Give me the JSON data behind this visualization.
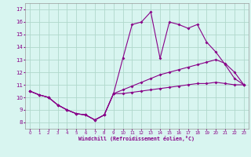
{
  "xlabel": "Windchill (Refroidissement éolien,°C)",
  "background_color": "#d8f5f0",
  "grid_color": "#b0d8cc",
  "line_color": "#880088",
  "x_ticks": [
    0,
    1,
    2,
    3,
    4,
    5,
    6,
    7,
    8,
    9,
    10,
    11,
    12,
    13,
    14,
    15,
    16,
    17,
    18,
    19,
    20,
    21,
    22,
    23
  ],
  "y_ticks": [
    8,
    9,
    10,
    11,
    12,
    13,
    14,
    15,
    16,
    17
  ],
  "xlim": [
    -0.5,
    23.5
  ],
  "ylim": [
    7.5,
    17.5
  ],
  "line1_x": [
    0,
    1,
    2,
    3,
    4,
    5,
    6,
    7,
    8,
    9,
    10,
    11,
    12,
    13,
    14,
    15,
    16,
    17,
    18,
    19,
    20,
    21,
    22,
    23
  ],
  "line1_y": [
    10.5,
    10.2,
    10.0,
    9.4,
    9.0,
    8.7,
    8.6,
    8.2,
    8.6,
    10.3,
    13.1,
    15.8,
    16.0,
    16.8,
    13.1,
    16.0,
    15.8,
    15.5,
    15.8,
    14.4,
    13.6,
    12.6,
    11.5,
    11.0
  ],
  "line2_x": [
    0,
    1,
    2,
    3,
    4,
    5,
    6,
    7,
    8,
    9,
    10,
    11,
    12,
    13,
    14,
    15,
    16,
    17,
    18,
    19,
    20,
    21,
    22,
    23
  ],
  "line2_y": [
    10.5,
    10.2,
    10.0,
    9.4,
    9.0,
    8.7,
    8.6,
    8.2,
    8.6,
    10.3,
    10.6,
    10.9,
    11.2,
    11.5,
    11.8,
    12.0,
    12.2,
    12.4,
    12.6,
    12.8,
    13.0,
    12.7,
    12.0,
    11.0
  ],
  "line3_x": [
    0,
    1,
    2,
    3,
    4,
    5,
    6,
    7,
    8,
    9,
    10,
    11,
    12,
    13,
    14,
    15,
    16,
    17,
    18,
    19,
    20,
    21,
    22,
    23
  ],
  "line3_y": [
    10.5,
    10.2,
    10.0,
    9.4,
    9.0,
    8.7,
    8.6,
    8.2,
    8.6,
    10.3,
    10.3,
    10.4,
    10.5,
    10.6,
    10.7,
    10.8,
    10.9,
    11.0,
    11.1,
    11.1,
    11.2,
    11.1,
    11.0,
    11.0
  ],
  "figw": 3.2,
  "figh": 2.0,
  "dpi": 100
}
